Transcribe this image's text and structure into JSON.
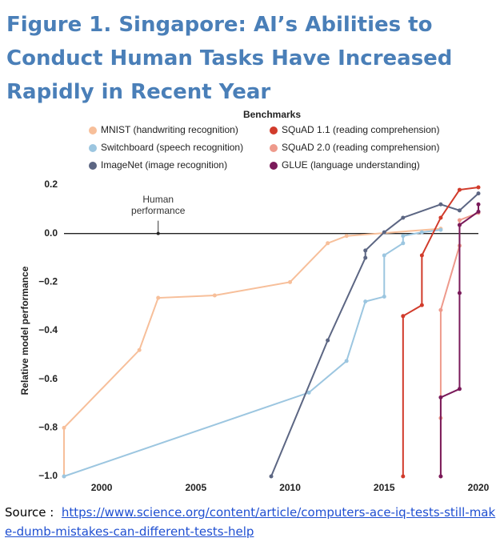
{
  "figure_title": "Figure 1. Singapore: AI’s Abilities to Conduct Human Tasks Have Increased Rapidly in Recent Year",
  "source_label": "Source :",
  "source_url": "https://www.science.org/content/article/computers-ace-iq-tests-still-make-dumb-mistakes-can-different-tests-help",
  "chart_data": {
    "type": "line",
    "legend_title": "Benchmarks",
    "legend": "top",
    "y_label": "Relative model performance",
    "xlim": [
      1998,
      2020
    ],
    "ylim": [
      -1.0,
      0.2
    ],
    "xticks": [
      2000,
      2005,
      2010,
      2015,
      2020
    ],
    "yticks": [
      0.2,
      {
        "value": 0,
        "label": "0.0"
      },
      {
        "value": -0.2,
        "label": "−0.2"
      },
      {
        "value": -0.4,
        "label": "−0.4"
      },
      {
        "value": -0.6,
        "label": "−0.6"
      },
      {
        "value": -0.8,
        "label": "−0.8"
      },
      {
        "value": -1.0,
        "label": "−1.0"
      }
    ],
    "grid": false,
    "annotation": {
      "text": "Human performance",
      "x": 2003,
      "y": 0
    },
    "series": [
      {
        "name": "MNIST (handwriting recognition)",
        "color": "#f7bf9a",
        "x": [
          1998,
          1998,
          2002,
          2003,
          2006,
          2010,
          2012,
          2013,
          2018
        ],
        "values": [
          -1.0,
          -0.8,
          -0.48,
          -0.265,
          -0.255,
          -0.2,
          -0.04,
          -0.01,
          0.02
        ]
      },
      {
        "name": "Switchboard (speech recognition)",
        "color": "#9cc6e0",
        "x": [
          1998,
          2011,
          2013,
          2014,
          2015,
          2015,
          2016,
          2016,
          2017,
          2018
        ],
        "values": [
          -1.0,
          -0.655,
          -0.525,
          -0.28,
          -0.26,
          -0.09,
          -0.04,
          -0.01,
          0.005,
          0.015
        ]
      },
      {
        "name": "ImageNet (image recognition)",
        "color": "#5c6683",
        "x": [
          2009,
          2012,
          2014,
          2014,
          2015,
          2016,
          2018,
          2019,
          2020
        ],
        "values": [
          -1.0,
          -0.44,
          -0.1,
          -0.07,
          0.005,
          0.065,
          0.12,
          0.095,
          0.165
        ]
      },
      {
        "name": "SQuAD 1.1 (reading comprehension)",
        "color": "#d13b2b",
        "x": [
          2016,
          2016,
          2017,
          2017,
          2018,
          2019,
          2020
        ],
        "values": [
          -1.0,
          -0.34,
          -0.295,
          -0.09,
          0.065,
          0.18,
          0.19
        ]
      },
      {
        "name": "SQuAD 2.0 (reading comprehension)",
        "color": "#ee9a8c",
        "x": [
          2018,
          2018,
          2018,
          2019,
          2019,
          2020
        ],
        "values": [
          -1.0,
          -0.76,
          -0.315,
          -0.05,
          0.055,
          0.085
        ]
      },
      {
        "name": "GLUE (language understanding)",
        "color": "#7a1a5a",
        "x": [
          2018,
          2018,
          2019,
          2019,
          2019,
          2020,
          2020
        ],
        "values": [
          -1.0,
          -0.675,
          -0.64,
          -0.245,
          0.035,
          0.09,
          0.12
        ]
      }
    ]
  }
}
